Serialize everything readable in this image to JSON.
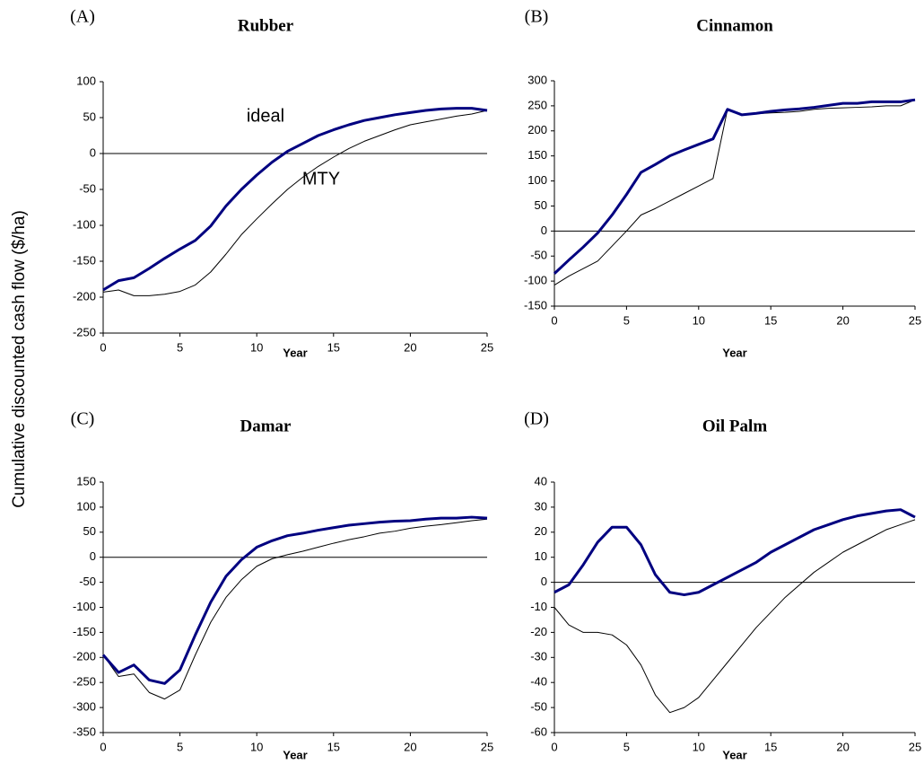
{
  "ylabel": "Cumulative discounted cash flow ($/ha)",
  "chart_data": [
    {
      "type": "line",
      "label": "(A)",
      "title": "Rubber",
      "xlabel": "Year",
      "annotations": [
        "ideal",
        "MTY"
      ],
      "x": [
        0,
        1,
        2,
        3,
        4,
        5,
        6,
        7,
        8,
        9,
        10,
        11,
        12,
        13,
        14,
        15,
        16,
        17,
        18,
        19,
        20,
        21,
        22,
        23,
        24,
        25
      ],
      "xlim": [
        0,
        25
      ],
      "xticks": [
        0,
        5,
        10,
        15,
        20,
        25
      ],
      "ylim": [
        -250,
        100
      ],
      "yticks": [
        -250,
        -200,
        -150,
        -100,
        -50,
        0,
        50,
        100
      ],
      "series": [
        {
          "color": "#000080",
          "line_width": 3,
          "values": [
            -190,
            -177,
            -173,
            -160,
            -146,
            -133,
            -121,
            -101,
            -73,
            -50,
            -30,
            -12,
            3,
            14,
            25,
            33,
            40,
            46,
            50,
            54,
            57,
            60,
            62,
            63,
            63,
            60
          ]
        },
        {
          "color": "#000000",
          "line_width": 1,
          "values": [
            -193,
            -190,
            -198,
            -198,
            -196,
            -192,
            -183,
            -165,
            -140,
            -113,
            -91,
            -70,
            -50,
            -33,
            -18,
            -5,
            7,
            17,
            25,
            33,
            40,
            44,
            48,
            52,
            55,
            60
          ]
        }
      ]
    },
    {
      "type": "line",
      "label": "(B)",
      "title": "Cinnamon",
      "xlabel": "Year",
      "x": [
        0,
        1,
        2,
        3,
        4,
        5,
        6,
        7,
        8,
        9,
        10,
        11,
        12,
        13,
        14,
        15,
        16,
        17,
        18,
        19,
        20,
        21,
        22,
        23,
        24,
        25
      ],
      "xlim": [
        0,
        25
      ],
      "xticks": [
        0,
        5,
        10,
        15,
        20,
        25
      ],
      "ylim": [
        -150,
        300
      ],
      "yticks": [
        -150,
        -100,
        -50,
        0,
        50,
        100,
        150,
        200,
        250,
        300
      ],
      "series": [
        {
          "color": "#000080",
          "line_width": 3,
          "values": [
            -85,
            -58,
            -32,
            -4,
            32,
            73,
            117,
            133,
            150,
            162,
            173,
            184,
            243,
            232,
            235,
            239,
            242,
            244,
            247,
            251,
            255,
            255,
            258,
            258,
            258,
            262
          ]
        },
        {
          "color": "#000000",
          "line_width": 1,
          "values": [
            -108,
            -90,
            -75,
            -60,
            -30,
            0,
            32,
            45,
            60,
            75,
            90,
            105,
            243,
            232,
            234,
            236,
            237,
            239,
            243,
            245,
            246,
            247,
            248,
            250,
            250,
            262
          ]
        }
      ]
    },
    {
      "type": "line",
      "label": "(C)",
      "title": "Damar",
      "xlabel": "Year",
      "x": [
        0,
        1,
        2,
        3,
        4,
        5,
        6,
        7,
        8,
        9,
        10,
        11,
        12,
        13,
        14,
        15,
        16,
        17,
        18,
        19,
        20,
        21,
        22,
        23,
        24,
        25
      ],
      "xlim": [
        0,
        25
      ],
      "xticks": [
        0,
        5,
        10,
        15,
        20,
        25
      ],
      "ylim": [
        -350,
        150
      ],
      "yticks": [
        -350,
        -300,
        -250,
        -200,
        -150,
        -100,
        -50,
        0,
        50,
        100,
        150
      ],
      "series": [
        {
          "color": "#000080",
          "line_width": 3,
          "values": [
            -195,
            -230,
            -215,
            -245,
            -252,
            -225,
            -155,
            -90,
            -38,
            -5,
            20,
            33,
            43,
            48,
            54,
            59,
            64,
            67,
            70,
            72,
            73,
            76,
            78,
            78,
            80,
            78
          ]
        },
        {
          "color": "#000000",
          "line_width": 1,
          "values": [
            -195,
            -238,
            -233,
            -270,
            -283,
            -265,
            -195,
            -130,
            -80,
            -45,
            -18,
            -3,
            5,
            12,
            20,
            28,
            35,
            41,
            48,
            52,
            58,
            62,
            65,
            69,
            73,
            76
          ]
        }
      ]
    },
    {
      "type": "line",
      "label": "(D)",
      "title": "Oil Palm",
      "xlabel": "Year",
      "x": [
        0,
        1,
        2,
        3,
        4,
        5,
        6,
        7,
        8,
        9,
        10,
        11,
        12,
        13,
        14,
        15,
        16,
        17,
        18,
        19,
        20,
        21,
        22,
        23,
        24,
        25
      ],
      "xlim": [
        0,
        25
      ],
      "xticks": [
        0,
        5,
        10,
        15,
        20,
        25
      ],
      "ylim": [
        -60,
        40
      ],
      "yticks": [
        -60,
        -50,
        -40,
        -30,
        -20,
        -10,
        0,
        10,
        20,
        30,
        40
      ],
      "series": [
        {
          "color": "#000080",
          "line_width": 3,
          "values": [
            -4,
            -1,
            7,
            16,
            22,
            22,
            15,
            3,
            -4,
            -5,
            -4,
            -1,
            2,
            5,
            8,
            12,
            15,
            18,
            21,
            23,
            25,
            26.5,
            27.5,
            28.5,
            29,
            26
          ]
        },
        {
          "color": "#000000",
          "line_width": 1,
          "values": [
            -10,
            -17,
            -20,
            -20,
            -21,
            -25,
            -33,
            -45,
            -52,
            -50,
            -46,
            -39,
            -32,
            -25,
            -18,
            -12,
            -6,
            -1,
            4,
            8,
            12,
            15,
            18,
            21,
            23,
            25
          ]
        }
      ]
    }
  ]
}
